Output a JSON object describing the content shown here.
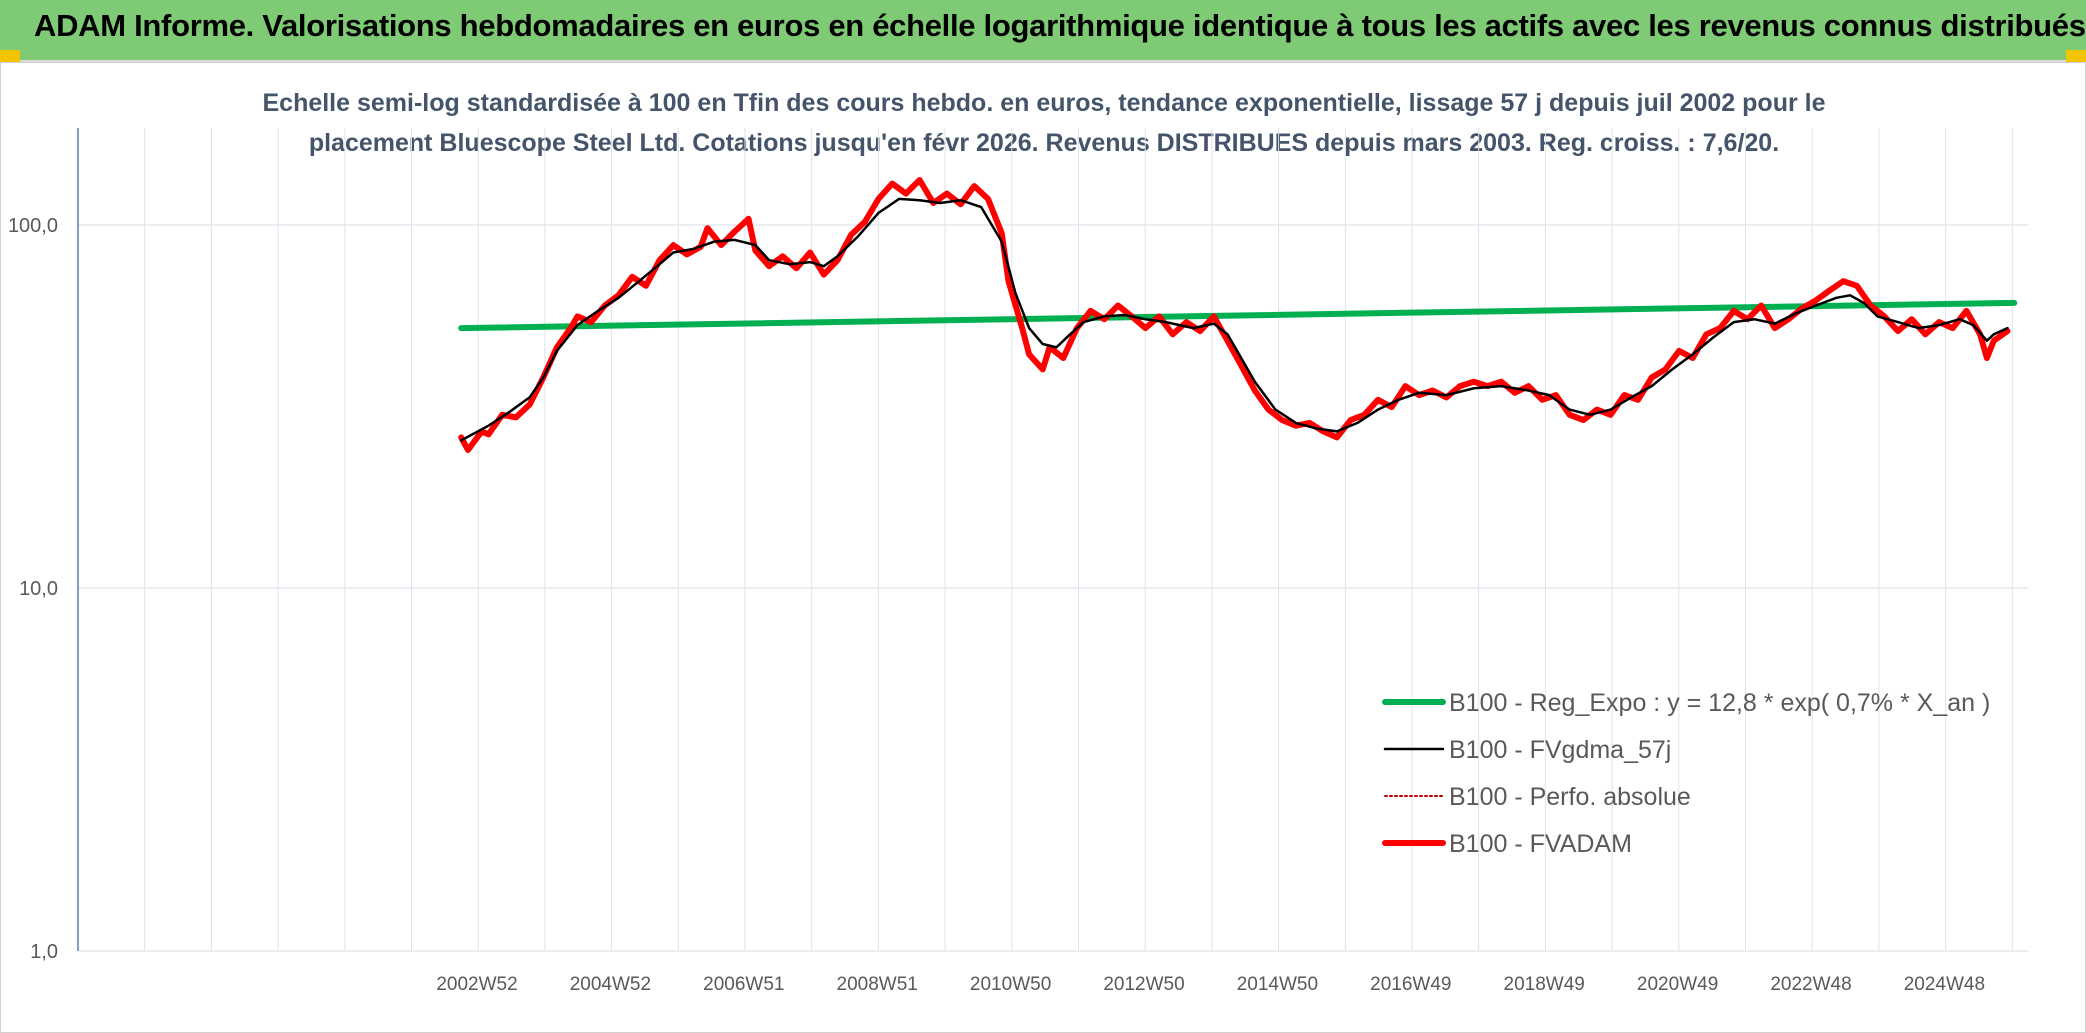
{
  "header": {
    "title": "ADAM Informe. Valorisations hebdomadaires en euros en échelle logarithmique identique à tous les actifs avec les revenus connus distribués"
  },
  "chart_data": {
    "type": "line",
    "subtitle_lines": [
      "Echelle semi-log standardisée à 100 en Tfin des cours hebdo. en euros, tendance exponentielle, lissage 57 j depuis juil 2002 pour le",
      "placement Bluescope Steel Ltd. Cotations jusqu'en févr 2026. Revenus DISTRIBUES depuis mars 2003. Reg. croiss. : 7,6/20."
    ],
    "y_scale": "log",
    "ylim": [
      1,
      185
    ],
    "y_ticks": [
      {
        "value": 1,
        "label": "1,0"
      },
      {
        "value": 10,
        "label": "10,0"
      },
      {
        "value": 100,
        "label": "100,0"
      }
    ],
    "x_ticks": [
      "2002W52",
      "2004W52",
      "2006W51",
      "2008W51",
      "2010W50",
      "2012W50",
      "2014W50",
      "2016W49",
      "2018W49",
      "2020W49",
      "2022W48",
      "2024W48"
    ],
    "xlim": [
      1998.0,
      2026.5
    ],
    "grid": true,
    "legend_position": "lower-right",
    "series": [
      {
        "name": "B100 - Reg_Expo : y = 12,8 * exp( 0,7% *  X_an )",
        "color": "#00b050",
        "style": "thick",
        "points": [
          [
            2003.6,
            52.0
          ],
          [
            2026.3,
            61.0
          ]
        ]
      },
      {
        "name": "B100 - FVgdma_57j",
        "color": "#000000",
        "style": "thin",
        "points": [
          [
            2003.6,
            25.5
          ],
          [
            2004.0,
            28.0
          ],
          [
            2004.3,
            30.5
          ],
          [
            2004.6,
            33.5
          ],
          [
            2004.8,
            38.0
          ],
          [
            2005.0,
            45.0
          ],
          [
            2005.3,
            53.0
          ],
          [
            2005.6,
            58.0
          ],
          [
            2005.9,
            63.0
          ],
          [
            2006.2,
            70.0
          ],
          [
            2006.5,
            78.0
          ],
          [
            2006.7,
            84.0
          ],
          [
            2007.0,
            86.0
          ],
          [
            2007.3,
            90.0
          ],
          [
            2007.6,
            91.0
          ],
          [
            2007.9,
            88.0
          ],
          [
            2008.1,
            80.0
          ],
          [
            2008.4,
            78.0
          ],
          [
            2008.7,
            79.0
          ],
          [
            2008.9,
            77.0
          ],
          [
            2009.1,
            82.0
          ],
          [
            2009.4,
            93.0
          ],
          [
            2009.7,
            108.0
          ],
          [
            2010.0,
            118.0
          ],
          [
            2010.3,
            117.0
          ],
          [
            2010.6,
            115.0
          ],
          [
            2010.9,
            117.0
          ],
          [
            2011.2,
            112.0
          ],
          [
            2011.5,
            90.0
          ],
          [
            2011.7,
            65.0
          ],
          [
            2011.9,
            52.0
          ],
          [
            2012.1,
            47.0
          ],
          [
            2012.3,
            46.0
          ],
          [
            2012.5,
            50.0
          ],
          [
            2012.7,
            54.0
          ],
          [
            2013.0,
            56.0
          ],
          [
            2013.3,
            56.5
          ],
          [
            2013.6,
            55.0
          ],
          [
            2013.9,
            54.0
          ],
          [
            2014.1,
            53.0
          ],
          [
            2014.3,
            52.0
          ],
          [
            2014.6,
            53.5
          ],
          [
            2014.8,
            50.0
          ],
          [
            2015.0,
            43.0
          ],
          [
            2015.2,
            37.0
          ],
          [
            2015.5,
            31.0
          ],
          [
            2015.8,
            28.5
          ],
          [
            2016.1,
            27.5
          ],
          [
            2016.4,
            27.0
          ],
          [
            2016.7,
            28.5
          ],
          [
            2017.0,
            31.0
          ],
          [
            2017.3,
            33.0
          ],
          [
            2017.6,
            34.5
          ],
          [
            2018.0,
            34.0
          ],
          [
            2018.4,
            35.5
          ],
          [
            2018.8,
            36.0
          ],
          [
            2019.2,
            35.0
          ],
          [
            2019.5,
            34.0
          ],
          [
            2019.8,
            31.0
          ],
          [
            2020.1,
            30.0
          ],
          [
            2020.4,
            31.0
          ],
          [
            2020.7,
            33.5
          ],
          [
            2021.0,
            36.0
          ],
          [
            2021.3,
            40.0
          ],
          [
            2021.6,
            44.0
          ],
          [
            2021.9,
            49.0
          ],
          [
            2022.2,
            54.0
          ],
          [
            2022.5,
            55.0
          ],
          [
            2022.8,
            53.5
          ],
          [
            2023.1,
            57.0
          ],
          [
            2023.4,
            60.0
          ],
          [
            2023.7,
            63.0
          ],
          [
            2023.9,
            64.0
          ],
          [
            2024.1,
            61.0
          ],
          [
            2024.3,
            56.0
          ],
          [
            2024.6,
            54.0
          ],
          [
            2024.9,
            52.0
          ],
          [
            2025.2,
            53.0
          ],
          [
            2025.5,
            55.0
          ],
          [
            2025.7,
            53.0
          ],
          [
            2025.9,
            48.0
          ],
          [
            2026.0,
            50.0
          ],
          [
            2026.2,
            52.0
          ]
        ]
      },
      {
        "name": "B100 - Perfo. absolue",
        "color": "#c00000",
        "style": "dotted",
        "points": []
      },
      {
        "name": "B100 - FVADAM",
        "color": "#ff0000",
        "style": "thick",
        "points": [
          [
            2003.6,
            26.0
          ],
          [
            2003.7,
            24.0
          ],
          [
            2003.9,
            27.0
          ],
          [
            2004.0,
            26.5
          ],
          [
            2004.2,
            30.0
          ],
          [
            2004.4,
            29.5
          ],
          [
            2004.6,
            32.0
          ],
          [
            2004.8,
            38.0
          ],
          [
            2005.0,
            46.0
          ],
          [
            2005.2,
            52.0
          ],
          [
            2005.3,
            56.0
          ],
          [
            2005.5,
            54.0
          ],
          [
            2005.7,
            60.0
          ],
          [
            2005.9,
            64.0
          ],
          [
            2006.1,
            72.0
          ],
          [
            2006.3,
            68.0
          ],
          [
            2006.5,
            80.0
          ],
          [
            2006.7,
            88.0
          ],
          [
            2006.9,
            83.0
          ],
          [
            2007.1,
            87.0
          ],
          [
            2007.2,
            98.0
          ],
          [
            2007.4,
            88.0
          ],
          [
            2007.6,
            96.0
          ],
          [
            2007.8,
            104.0
          ],
          [
            2007.9,
            85.0
          ],
          [
            2008.1,
            77.0
          ],
          [
            2008.3,
            82.0
          ],
          [
            2008.5,
            76.0
          ],
          [
            2008.7,
            84.0
          ],
          [
            2008.9,
            73.0
          ],
          [
            2009.1,
            80.0
          ],
          [
            2009.3,
            94.0
          ],
          [
            2009.5,
            102.0
          ],
          [
            2009.7,
            118.0
          ],
          [
            2009.9,
            130.0
          ],
          [
            2010.1,
            122.0
          ],
          [
            2010.3,
            133.0
          ],
          [
            2010.5,
            115.0
          ],
          [
            2010.7,
            122.0
          ],
          [
            2010.9,
            114.0
          ],
          [
            2011.1,
            128.0
          ],
          [
            2011.3,
            118.0
          ],
          [
            2011.5,
            95.0
          ],
          [
            2011.6,
            70.0
          ],
          [
            2011.8,
            52.0
          ],
          [
            2011.9,
            44.0
          ],
          [
            2012.1,
            40.0
          ],
          [
            2012.2,
            46.0
          ],
          [
            2012.4,
            43.0
          ],
          [
            2012.6,
            52.0
          ],
          [
            2012.8,
            58.0
          ],
          [
            2013.0,
            55.0
          ],
          [
            2013.2,
            60.0
          ],
          [
            2013.4,
            56.0
          ],
          [
            2013.6,
            52.0
          ],
          [
            2013.8,
            56.0
          ],
          [
            2014.0,
            50.0
          ],
          [
            2014.2,
            54.0
          ],
          [
            2014.4,
            51.0
          ],
          [
            2014.6,
            56.0
          ],
          [
            2014.8,
            48.0
          ],
          [
            2015.0,
            41.0
          ],
          [
            2015.2,
            35.0
          ],
          [
            2015.4,
            31.0
          ],
          [
            2015.6,
            29.0
          ],
          [
            2015.8,
            28.0
          ],
          [
            2016.0,
            28.5
          ],
          [
            2016.2,
            27.0
          ],
          [
            2016.4,
            26.0
          ],
          [
            2016.6,
            29.0
          ],
          [
            2016.8,
            30.0
          ],
          [
            2017.0,
            33.0
          ],
          [
            2017.2,
            31.5
          ],
          [
            2017.4,
            36.0
          ],
          [
            2017.6,
            34.0
          ],
          [
            2017.8,
            35.0
          ],
          [
            2018.0,
            33.5
          ],
          [
            2018.2,
            36.0
          ],
          [
            2018.4,
            37.0
          ],
          [
            2018.6,
            36.0
          ],
          [
            2018.8,
            37.0
          ],
          [
            2019.0,
            34.5
          ],
          [
            2019.2,
            36.0
          ],
          [
            2019.4,
            33.0
          ],
          [
            2019.6,
            34.0
          ],
          [
            2019.8,
            30.0
          ],
          [
            2020.0,
            29.0
          ],
          [
            2020.2,
            31.0
          ],
          [
            2020.4,
            30.0
          ],
          [
            2020.6,
            34.0
          ],
          [
            2020.8,
            33.0
          ],
          [
            2021.0,
            38.0
          ],
          [
            2021.2,
            40.0
          ],
          [
            2021.4,
            45.0
          ],
          [
            2021.6,
            43.0
          ],
          [
            2021.8,
            50.0
          ],
          [
            2022.0,
            52.0
          ],
          [
            2022.2,
            58.0
          ],
          [
            2022.4,
            55.0
          ],
          [
            2022.6,
            60.0
          ],
          [
            2022.8,
            52.0
          ],
          [
            2023.0,
            55.0
          ],
          [
            2023.2,
            59.0
          ],
          [
            2023.4,
            62.0
          ],
          [
            2023.6,
            66.0
          ],
          [
            2023.8,
            70.0
          ],
          [
            2024.0,
            68.0
          ],
          [
            2024.2,
            60.0
          ],
          [
            2024.4,
            56.0
          ],
          [
            2024.6,
            51.0
          ],
          [
            2024.8,
            55.0
          ],
          [
            2025.0,
            50.0
          ],
          [
            2025.2,
            54.0
          ],
          [
            2025.4,
            52.0
          ],
          [
            2025.6,
            58.0
          ],
          [
            2025.8,
            50.0
          ],
          [
            2025.9,
            43.0
          ],
          [
            2026.0,
            48.0
          ],
          [
            2026.2,
            51.0
          ]
        ]
      }
    ]
  }
}
